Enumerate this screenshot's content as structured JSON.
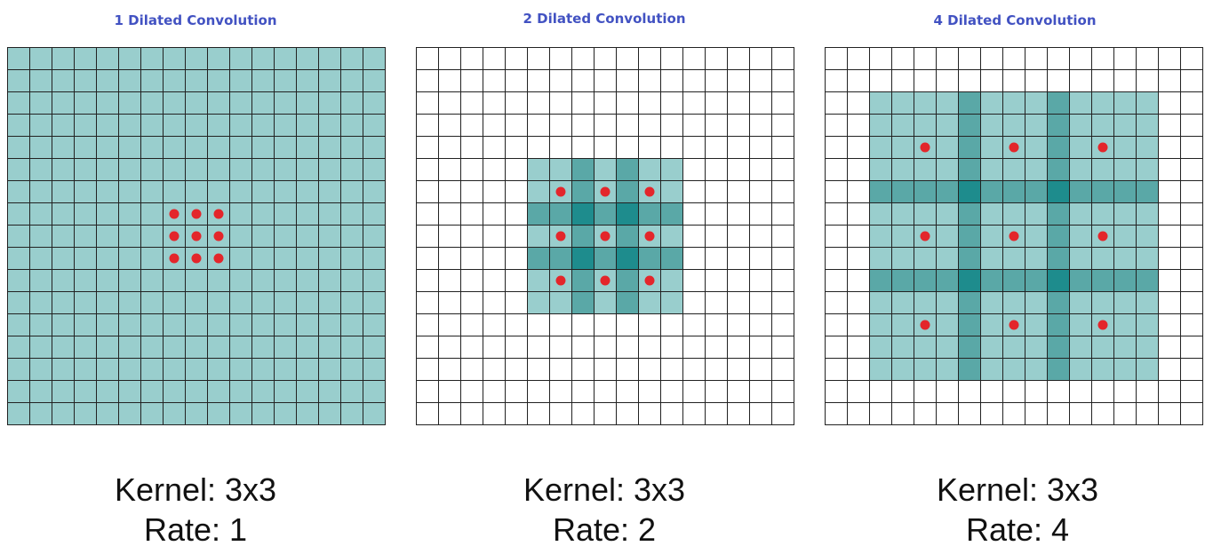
{
  "colors": {
    "light_teal": "#99cecd",
    "mid_teal": "#5aa8a7",
    "dark_teal": "#1e8c8d",
    "dot": "#e3262b",
    "grid_line": "#222222",
    "title": "#4252c2"
  },
  "grid_size": 17,
  "panels": [
    {
      "title": "1 Dilated Convolution",
      "kernel_label": "Kernel: 3x3",
      "rate_label": "Rate: 1",
      "kernel_size": 3,
      "rate": 1
    },
    {
      "title": "2 Dilated Convolution",
      "kernel_label": "Kernel: 3x3",
      "rate_label": "Rate: 2",
      "kernel_size": 3,
      "rate": 2
    },
    {
      "title": "4 Dilated Convolution",
      "kernel_label": "Kernel: 3x3",
      "rate_label": "Rate: 4",
      "kernel_size": 3,
      "rate": 4
    }
  ]
}
